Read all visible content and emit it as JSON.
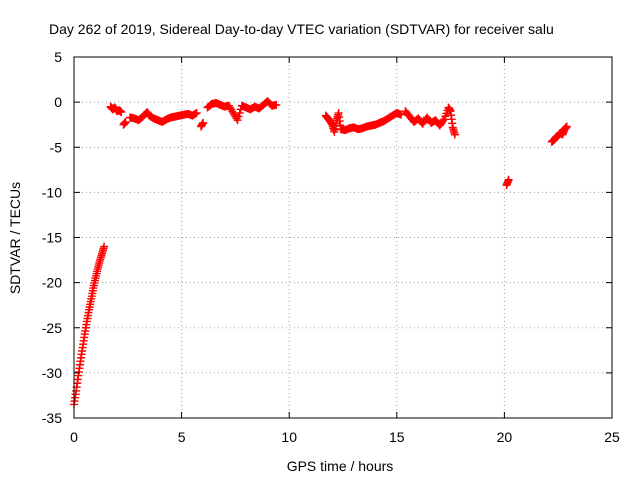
{
  "chart_data": {
    "type": "scatter",
    "title": "Day 262 of 2019, Sidereal Day-to-day VTEC variation (SDTVAR) for receiver salu",
    "xlabel": "GPS time / hours",
    "ylabel": "SDTVAR / TECUs",
    "xlim": [
      0,
      25
    ],
    "ylim": [
      -35,
      5
    ],
    "xticks": [
      0,
      5,
      10,
      15,
      20,
      25
    ],
    "yticks": [
      5,
      0,
      -5,
      -10,
      -15,
      -20,
      -25,
      -30,
      -35
    ],
    "grid": true,
    "marker": "+",
    "color": "#ff0000",
    "series": [
      {
        "name": "SDTVAR",
        "segments": [
          {
            "x": [
              0.0,
              0.1,
              0.2,
              0.3,
              0.4,
              0.5,
              0.6,
              0.7,
              0.8,
              0.9,
              1.0,
              1.1,
              1.2,
              1.3,
              1.4
            ],
            "y": [
              -33.5,
              -32.0,
              -30.3,
              -28.7,
              -27.2,
              -25.7,
              -24.3,
              -23.0,
              -21.8,
              -20.6,
              -19.5,
              -18.5,
              -17.6,
              -16.8,
              -16.0
            ]
          },
          {
            "x": [
              1.7,
              1.8,
              1.9,
              2.0,
              2.1,
              2.2
            ],
            "y": [
              -0.5,
              -0.8,
              -0.6,
              -1.0,
              -0.9,
              -1.1
            ]
          },
          {
            "x": [
              2.3,
              2.4
            ],
            "y": [
              -2.5,
              -2.2
            ]
          },
          {
            "x": [
              2.6,
              2.8,
              3.0,
              3.2,
              3.4,
              3.5,
              3.7,
              3.9,
              4.1,
              4.3,
              4.5,
              4.7,
              4.9,
              5.1,
              5.3,
              5.5,
              5.7
            ],
            "y": [
              -1.7,
              -1.8,
              -2.0,
              -1.6,
              -1.1,
              -1.5,
              -1.8,
              -2.0,
              -2.2,
              -1.9,
              -1.7,
              -1.6,
              -1.5,
              -1.4,
              -1.3,
              -1.5,
              -1.2
            ]
          },
          {
            "x": [
              5.9,
              6.0
            ],
            "y": [
              -2.7,
              -2.3
            ]
          },
          {
            "x": [
              6.2,
              6.4,
              6.6,
              6.8,
              7.0,
              7.2,
              7.4,
              7.6,
              7.8,
              8.0,
              8.2,
              8.4,
              8.6,
              8.8,
              9.0,
              9.2,
              9.4
            ],
            "y": [
              -0.6,
              -0.2,
              -0.1,
              -0.3,
              -0.5,
              -0.4,
              -1.2,
              -2.0,
              -0.4,
              -0.6,
              -0.8,
              -0.5,
              -0.7,
              -0.3,
              0.1,
              -0.4,
              -0.3
            ]
          },
          {
            "x": [
              11.7,
              11.8,
              11.9,
              12.0,
              12.1,
              12.2,
              12.3,
              12.4,
              12.6,
              12.8,
              13.0,
              13.2,
              13.4,
              13.6,
              13.8,
              14.0,
              14.2,
              14.4,
              14.6,
              14.8,
              15.0,
              15.2
            ],
            "y": [
              -1.5,
              -1.8,
              -2.1,
              -2.5,
              -3.3,
              -2.0,
              -1.2,
              -3.0,
              -3.1,
              -2.9,
              -2.8,
              -3.0,
              -2.9,
              -2.7,
              -2.6,
              -2.5,
              -2.3,
              -2.1,
              -1.8,
              -1.5,
              -1.2,
              -1.4
            ]
          },
          {
            "x": [
              15.4,
              15.6,
              15.8,
              16.0,
              16.2,
              16.4,
              16.6,
              16.8,
              17.0,
              17.2,
              17.4,
              17.5,
              17.6,
              17.7
            ],
            "y": [
              -1.0,
              -1.6,
              -2.2,
              -1.8,
              -2.4,
              -1.7,
              -2.3,
              -2.0,
              -2.6,
              -1.9,
              -0.6,
              -1.0,
              -2.8,
              -3.6
            ]
          },
          {
            "x": [
              20.1,
              20.2
            ],
            "y": [
              -9.2,
              -8.6
            ]
          },
          {
            "x": [
              22.2,
              22.3,
              22.4,
              22.5,
              22.6,
              22.7,
              22.8,
              22.9
            ],
            "y": [
              -4.4,
              -4.2,
              -3.9,
              -3.7,
              -3.4,
              -3.6,
              -3.0,
              -2.7
            ]
          }
        ]
      }
    ]
  }
}
